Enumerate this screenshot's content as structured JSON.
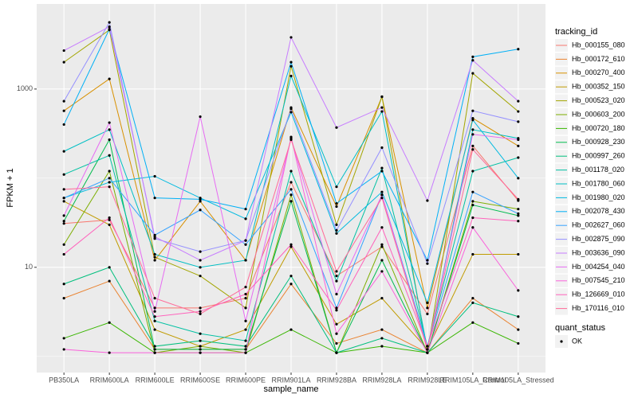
{
  "chart_data": {
    "type": "line",
    "x_label": "sample_name",
    "y_label": "FPKM + 1",
    "categories": [
      "PB350LA",
      "RRIM600LA",
      "RRIM600LE",
      "RRIM600SE",
      "RRIM600PE",
      "RRIM901LA",
      "RRIM928BA",
      "RRIM928LA",
      "RRIM928LE",
      "RRIM105LA_Control",
      "RRIM105LA_Stressed"
    ],
    "ylim": [
      0.66,
      9000
    ],
    "yticks": [
      10,
      1000
    ],
    "log_y": true,
    "grid": true,
    "legend": "right",
    "legend_title": "tracking_id",
    "point_legend_title": "quant_status",
    "point_legend_label": "OK",
    "point_color": "#000000",
    "series": [
      {
        "name": "Hb_000155_080",
        "color": "#F8766D",
        "values": [
          31,
          34,
          3.5,
          3.5,
          4.5,
          90,
          8,
          17,
          3,
          230,
          56
        ]
      },
      {
        "name": "Hb_000172_610",
        "color": "#EA8331",
        "values": [
          4.5,
          7,
          1.2,
          1.2,
          1.2,
          6.5,
          1.4,
          2,
          1.1,
          4.5,
          2
        ]
      },
      {
        "name": "Hb_000270_400",
        "color": "#D89000",
        "values": [
          570,
          1300,
          12,
          55,
          12,
          620,
          48,
          820,
          3.5,
          470,
          230
        ]
      },
      {
        "name": "Hb_000352_150",
        "color": "#C09B00",
        "values": [
          55,
          30,
          2,
          1.3,
          2,
          17,
          2.3,
          4.5,
          1.2,
          14,
          14
        ]
      },
      {
        "name": "Hb_000523_020",
        "color": "#A3A500",
        "values": [
          2000,
          4600,
          13,
          8,
          3.5,
          1800,
          30,
          820,
          1.1,
          1500,
          560
        ]
      },
      {
        "name": "Hb_000603_200",
        "color": "#7CAE00",
        "values": [
          18,
          120,
          1.1,
          1.3,
          1.1,
          65,
          1.1,
          18,
          1.1,
          55,
          45
        ]
      },
      {
        "name": "Hb_000720_180",
        "color": "#39B600",
        "values": [
          1.6,
          2.4,
          1.1,
          1.1,
          1.1,
          2,
          1.1,
          1.3,
          1.1,
          2.4,
          1.4
        ]
      },
      {
        "name": "Hb_000928_230",
        "color": "#00BB4E",
        "values": [
          33,
          270,
          1.2,
          1.2,
          1.2,
          55,
          1.1,
          12,
          1.1,
          50,
          38
        ]
      },
      {
        "name": "Hb_000997_260",
        "color": "#00BF7D",
        "values": [
          6.5,
          10,
          1.3,
          1.5,
          1.3,
          8,
          1.1,
          1.6,
          1.1,
          4,
          2.8
        ]
      },
      {
        "name": "Hb_001178_020",
        "color": "#00C1A3",
        "values": [
          110,
          180,
          2.5,
          1.8,
          1.5,
          120,
          7,
          130,
          1.3,
          120,
          170
        ]
      },
      {
        "name": "Hb_001780_060",
        "color": "#00BFC4",
        "values": [
          200,
          350,
          14,
          10,
          12,
          1400,
          80,
          560,
          1.2,
          350,
          280
        ]
      },
      {
        "name": "Hb_001980_020",
        "color": "#00BAE0",
        "values": [
          60,
          90,
          105,
          60,
          35,
          550,
          24,
          70,
          4,
          450,
          100
        ]
      },
      {
        "name": "Hb_002078_430",
        "color": "#00B0F6",
        "values": [
          400,
          4700,
          60,
          58,
          45,
          2000,
          52,
          120,
          12,
          2300,
          2800
        ]
      },
      {
        "name": "Hb_002627_060",
        "color": "#35A2FF",
        "values": [
          60,
          100,
          23,
          44,
          18,
          75,
          3.5,
          65,
          1.3,
          70,
          40
        ]
      },
      {
        "name": "Hb_002875_090",
        "color": "#9590FF",
        "values": [
          730,
          5600,
          21,
          15,
          20,
          600,
          26,
          220,
          11,
          570,
          430
        ]
      },
      {
        "name": "Hb_003636_090",
        "color": "#C77CFF",
        "values": [
          2700,
          5000,
          22,
          12,
          20,
          3800,
          370,
          620,
          56,
          2100,
          730
        ]
      },
      {
        "name": "Hb_004254_040",
        "color": "#E76BF3",
        "values": [
          38,
          420,
          3.2,
          490,
          2.5,
          280,
          5,
          65,
          1.2,
          310,
          270
        ]
      },
      {
        "name": "Hb_007545_210",
        "color": "#FA62DB",
        "values": [
          1.2,
          1.1,
          1.1,
          1.1,
          1.1,
          290,
          1.8,
          9,
          1.1,
          28,
          5.5
        ]
      },
      {
        "name": "Hb_126669_010",
        "color": "#FF62BC",
        "values": [
          14,
          36,
          2.8,
          3.2,
          5,
          18,
          3.3,
          28,
          1.3,
          36,
          33
        ]
      },
      {
        "name": "Hb_170116_010",
        "color": "#FF6A98",
        "values": [
          75,
          80,
          4.5,
          3,
          6,
          270,
          9,
          60,
          1.2,
          210,
          58
        ]
      }
    ]
  }
}
